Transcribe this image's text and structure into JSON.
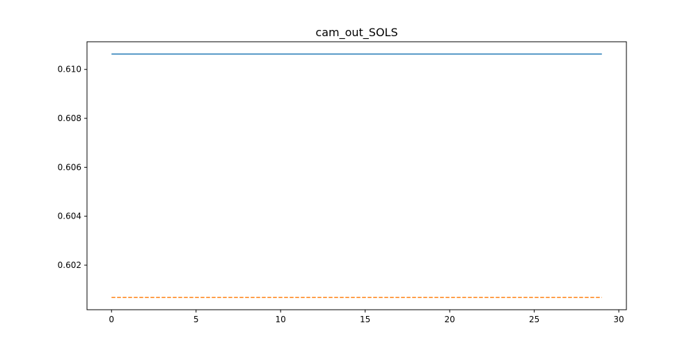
{
  "chart_data": {
    "type": "line",
    "title": "cam_out_SOLS",
    "xlabel": "",
    "ylabel": "",
    "xlim": [
      -1.45,
      30.45
    ],
    "ylim": [
      0.60018,
      0.61113
    ],
    "x_ticks": [
      0,
      5,
      10,
      15,
      20,
      25,
      30
    ],
    "x_tick_labels": [
      "0",
      "5",
      "10",
      "15",
      "20",
      "25",
      "30"
    ],
    "y_ticks": [
      0.602,
      0.604,
      0.606,
      0.608,
      0.61
    ],
    "y_tick_labels": [
      "0.602",
      "0.604",
      "0.606",
      "0.608",
      "0.610"
    ],
    "grid": false,
    "legend": "none",
    "series": [
      {
        "x": [
          0,
          29
        ],
        "values": [
          0.61063,
          0.61063
        ],
        "color": "#1f77b4",
        "style": "solid"
      },
      {
        "x": [
          0,
          29
        ],
        "values": [
          0.60068,
          0.60068
        ],
        "color": "#ff7f0e",
        "style": "dashed"
      }
    ]
  }
}
